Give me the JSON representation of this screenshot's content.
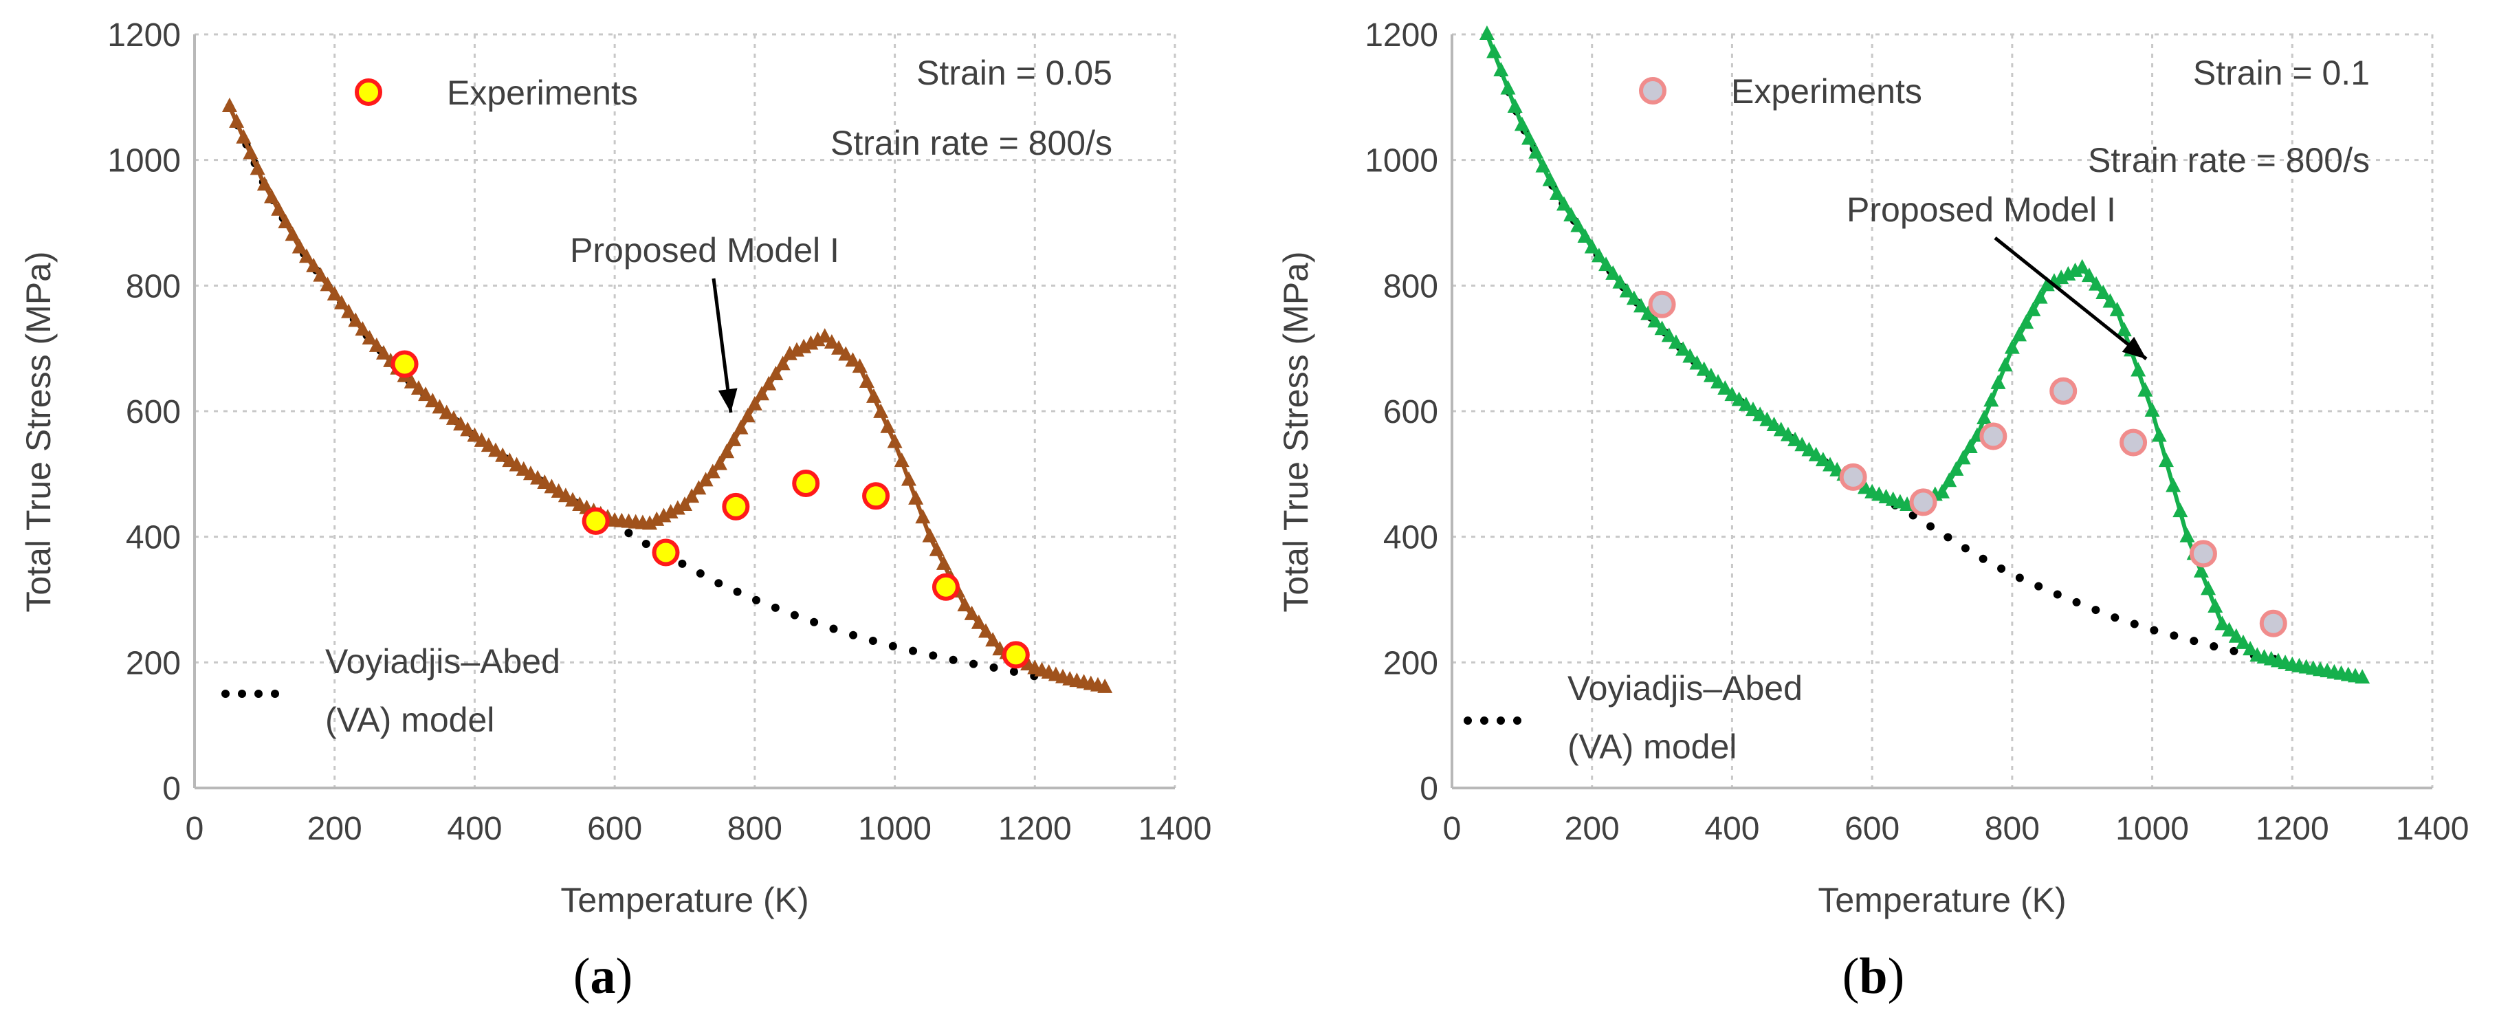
{
  "colors": {
    "axis": "#b8b8b8",
    "grid": "#c8c8c8",
    "text": "#404040",
    "va_model": "#000000",
    "model_a": "#a0521c",
    "model_b": "#15b04c",
    "exp_a_fill": "#ffff00",
    "exp_a_edge": "#ff1a1a",
    "exp_b_fill": "#c9c9d6",
    "exp_b_edge": "#f08c8c"
  },
  "captions": [
    {
      "open": "(",
      "letter": "a",
      "close": ")"
    },
    {
      "open": "(",
      "letter": "b",
      "close": ")"
    }
  ],
  "chart_data": [
    {
      "type": "line",
      "panel": "a",
      "xlabel": "Temperature (K)",
      "ylabel": "Total True Stress (MPa)",
      "xlim": [
        0,
        1400
      ],
      "ylim": [
        0,
        1200
      ],
      "xticks": [
        0,
        200,
        400,
        600,
        800,
        1000,
        1200,
        1400
      ],
      "yticks": [
        0,
        200,
        400,
        600,
        800,
        1000,
        1200
      ],
      "grid": true,
      "annotations": {
        "strain": "Strain = 0.05",
        "strain_rate": "Strain rate = 800/s",
        "model_label": "Proposed Model I",
        "legend_exp": "Experiments",
        "legend_va_line1": "Voyiadjis–Abed",
        "legend_va_line2": "(VA) model"
      },
      "series": [
        {
          "name": "Experiments",
          "marker": "circle",
          "x": [
            300,
            573,
            673,
            773,
            873,
            973,
            1073,
            1173
          ],
          "y": [
            675,
            425,
            375,
            448,
            485,
            465,
            320,
            212
          ]
        },
        {
          "name": "Proposed Model I",
          "marker": "triangle",
          "x": [
            50,
            100,
            150,
            200,
            250,
            300,
            350,
            400,
            450,
            500,
            550,
            600,
            650,
            700,
            750,
            800,
            850,
            900,
            950,
            1000,
            1050,
            1100,
            1150,
            1200,
            1250,
            1300
          ],
          "y": [
            1085,
            960,
            860,
            785,
            715,
            655,
            605,
            560,
            520,
            485,
            450,
            425,
            420,
            450,
            515,
            610,
            690,
            718,
            670,
            550,
            400,
            290,
            220,
            190,
            172,
            160
          ]
        },
        {
          "name": "Voyiadjis–Abed (VA) model",
          "marker": "dot",
          "x": [
            50,
            100,
            150,
            200,
            250,
            300,
            350,
            400,
            450,
            500,
            550,
            600,
            650,
            700,
            750,
            800,
            850,
            900,
            950,
            1000,
            1050,
            1100,
            1150,
            1200
          ],
          "y": [
            1085,
            960,
            860,
            785,
            715,
            655,
            605,
            560,
            520,
            485,
            450,
            420,
            385,
            355,
            325,
            300,
            278,
            258,
            240,
            225,
            212,
            200,
            190,
            178
          ]
        }
      ]
    },
    {
      "type": "line",
      "panel": "b",
      "xlabel": "Temperature (K)",
      "ylabel": "Total True Stress (MPa)",
      "xlim": [
        0,
        1400
      ],
      "ylim": [
        0,
        1200
      ],
      "xticks": [
        0,
        200,
        400,
        600,
        800,
        1000,
        1200,
        1400
      ],
      "yticks": [
        0,
        200,
        400,
        600,
        800,
        1000,
        1200
      ],
      "grid": true,
      "annotations": {
        "strain": "Strain = 0.1",
        "strain_rate": "Strain rate = 800/s",
        "model_label": "Proposed Model I",
        "legend_exp": "Experiments",
        "legend_va_line1": "Voyiadjis–Abed",
        "legend_va_line2": "(VA) model"
      },
      "series": [
        {
          "name": "Experiments",
          "marker": "circle",
          "x": [
            300,
            573,
            673,
            773,
            873,
            973,
            1073,
            1173
          ],
          "y": [
            770,
            495,
            455,
            560,
            632,
            550,
            373,
            262
          ]
        },
        {
          "name": "Proposed Model I",
          "marker": "triangle",
          "x": [
            50,
            100,
            150,
            200,
            250,
            300,
            350,
            400,
            450,
            500,
            550,
            600,
            650,
            700,
            750,
            800,
            850,
            900,
            950,
            1000,
            1050,
            1100,
            1150,
            1200,
            1250,
            1300
          ],
          "y": [
            1200,
            1055,
            945,
            860,
            790,
            730,
            675,
            625,
            585,
            545,
            505,
            470,
            450,
            470,
            560,
            700,
            800,
            828,
            760,
            600,
            400,
            260,
            210,
            195,
            185,
            175
          ]
        },
        {
          "name": "Voyiadjis–Abed (VA) model",
          "marker": "dot",
          "x": [
            50,
            100,
            150,
            200,
            250,
            300,
            350,
            400,
            450,
            500,
            550,
            600,
            650,
            700,
            750,
            800,
            850,
            900,
            950,
            1000,
            1050,
            1100,
            1150,
            1200
          ],
          "y": [
            1200,
            1055,
            945,
            860,
            790,
            730,
            675,
            625,
            585,
            545,
            505,
            470,
            440,
            405,
            370,
            340,
            315,
            292,
            270,
            252,
            237,
            222,
            210,
            200
          ]
        }
      ]
    }
  ]
}
